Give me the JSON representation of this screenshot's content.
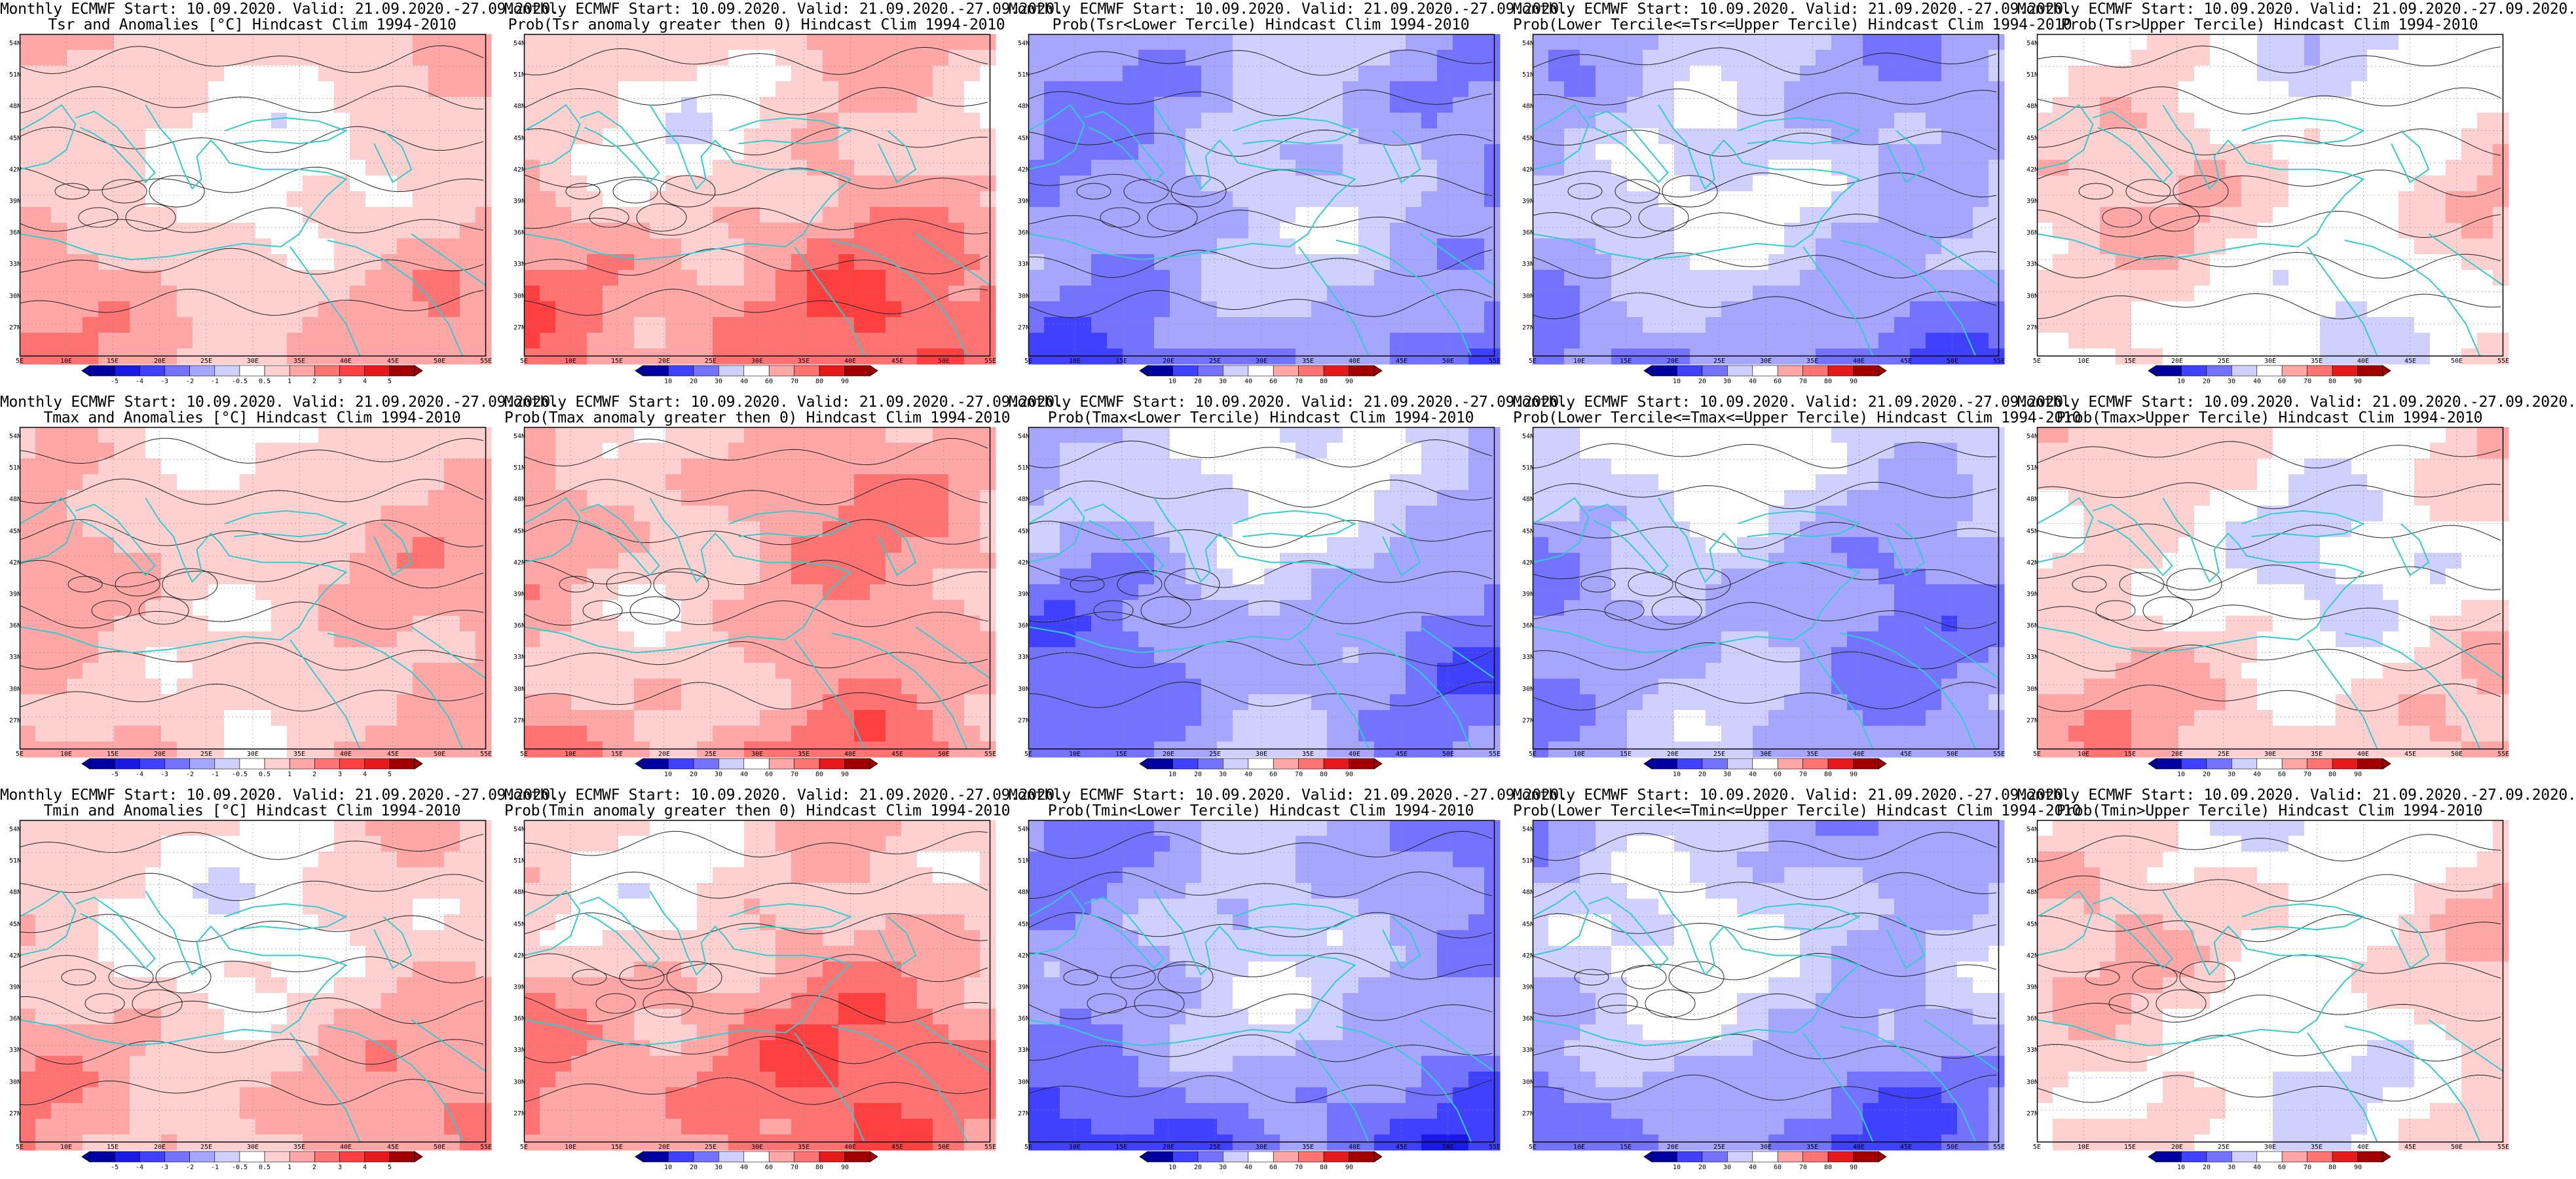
{
  "map_common": {
    "latitude_labels": [
      "54N",
      "51N",
      "48N",
      "45N",
      "42N",
      "39N",
      "36N",
      "33N",
      "30N",
      "27N"
    ],
    "longitude_labels": [
      "5E",
      "10E",
      "15E",
      "20E",
      "25E",
      "30E",
      "35E",
      "40E",
      "45E",
      "50E",
      "55E"
    ],
    "colorbar_anomaly": [
      "-5",
      "-4",
      "-3",
      "-2",
      "-1",
      "-0.5",
      "0.5",
      "1",
      "2",
      "3",
      "4",
      "5"
    ],
    "colorbar_probability": [
      "10",
      "20",
      "30",
      "40",
      "60",
      "70",
      "80",
      "90"
    ],
    "colors": {
      "coastline": "#33cccc",
      "contour": "#222222",
      "blue_scale": [
        "#0000a0",
        "#1a1ae6",
        "#4040ff",
        "#7373ff",
        "#a6a6ff",
        "#d0d0ff"
      ],
      "red_scale": [
        "#ffd0d0",
        "#ffa6a6",
        "#ff7373",
        "#ff4040",
        "#e61a1a",
        "#a00000"
      ]
    }
  },
  "panels": [
    {
      "title1": "Monthly ECMWF Start: 10.09.2020. Valid: 21.09.2020.-27.09.2020.",
      "title2": "Tsr and Anomalies [°C] Hindcast Clim 1994-2010",
      "kind": "anomaly",
      "bias": 0.6,
      "colorbar": "anomaly"
    },
    {
      "title1": "Monthly ECMWF Start: 10.09.2020. Valid: 21.09.2020.-27.09.2020.",
      "title2": "Prob(Tsr anomaly greater then 0) Hindcast Clim 1994-2010",
      "kind": "prob",
      "bias": 0.9,
      "colorbar": "probability"
    },
    {
      "title1": "Monthly ECMWF Start: 10.09.2020. Valid: 21.09.2020.-27.09.2020.",
      "title2": "Prob(Tsr<Lower Tercile) Hindcast Clim 1994-2010",
      "kind": "prob",
      "bias": -1.0,
      "colorbar": "probability"
    },
    {
      "title1": "Monthly ECMWF Start: 10.09.2020. Valid: 21.09.2020.-27.09.2020.",
      "title2": "Prob(Lower Tercile<=Tsr<=Upper Tercile) Hindcast Clim 1994-2010",
      "kind": "prob",
      "bias": -0.8,
      "colorbar": "probability"
    },
    {
      "title1": "Monthly ECMWF Start: 10.09.2020. Valid: 21.09.2020.-27.09.2020.",
      "title2": "Prob(Tsr>Upper Tercile) Hindcast Clim 1994-2010",
      "kind": "prob",
      "bias": 0.2,
      "colorbar": "probability"
    },
    {
      "title1": "Monthly ECMWF Start: 10.09.2020. Valid: 21.09.2020.-27.09.2020.",
      "title2": "Tmax and Anomalies [°C] Hindcast Clim 1994-2010",
      "kind": "anomaly",
      "bias": 0.7,
      "colorbar": "anomaly"
    },
    {
      "title1": "Monthly ECMWF Start: 10.09.2020. Valid: 21.09.2020.-27.09.2020.",
      "title2": "Prob(Tmax anomaly greater then 0) Hindcast Clim 1994-2010",
      "kind": "prob",
      "bias": 0.95,
      "colorbar": "probability"
    },
    {
      "title1": "Monthly ECMWF Start: 10.09.2020. Valid: 21.09.2020.-27.09.2020.",
      "title2": "Prob(Tmax<Lower Tercile) Hindcast Clim 1994-2010",
      "kind": "prob",
      "bias": -0.9,
      "colorbar": "probability"
    },
    {
      "title1": "Monthly ECMWF Start: 10.09.2020. Valid: 21.09.2020.-27.09.2020.",
      "title2": "Prob(Lower Tercile<=Tmax<=Upper Tercile) Hindcast Clim 1994-2010",
      "kind": "prob",
      "bias": -0.85,
      "colorbar": "probability"
    },
    {
      "title1": "Monthly ECMWF Start: 10.09.2020. Valid: 21.09.2020.-27.09.2020.",
      "title2": "Prob(Tmax>Upper Tercile) Hindcast Clim 1994-2010",
      "kind": "prob",
      "bias": 0.3,
      "colorbar": "probability"
    },
    {
      "title1": "Monthly ECMWF Start: 10.09.2020. Valid: 21.09.2020.-27.09.2020.",
      "title2": "Tmin and Anomalies [°C] Hindcast Clim 1994-2010",
      "kind": "anomaly",
      "bias": 0.6,
      "colorbar": "anomaly"
    },
    {
      "title1": "Monthly ECMWF Start: 10.09.2020. Valid: 21.09.2020.-27.09.2020.",
      "title2": "Prob(Tmin anomaly greater then 0) Hindcast Clim 1994-2010",
      "kind": "prob",
      "bias": 1.0,
      "colorbar": "probability"
    },
    {
      "title1": "Monthly ECMWF Start: 10.09.2020. Valid: 21.09.2020.-27.09.2020.",
      "title2": "Prob(Tmin<Lower Tercile) Hindcast Clim 1994-2010",
      "kind": "prob",
      "bias": -1.1,
      "colorbar": "probability"
    },
    {
      "title1": "Monthly ECMWF Start: 10.09.2020. Valid: 21.09.2020.-27.09.2020.",
      "title2": "Prob(Lower Tercile<=Tmin<=Upper Tercile) Hindcast Clim 1994-2010",
      "kind": "prob",
      "bias": -0.8,
      "colorbar": "probability"
    },
    {
      "title1": "Monthly ECMWF Start: 10.09.2020. Valid: 21.09.2020.-27.09.2020.",
      "title2": "Prob(Tmin>Upper Tercile) Hindcast Clim 1994-2010",
      "kind": "prob",
      "bias": 0.25,
      "colorbar": "probability"
    }
  ]
}
